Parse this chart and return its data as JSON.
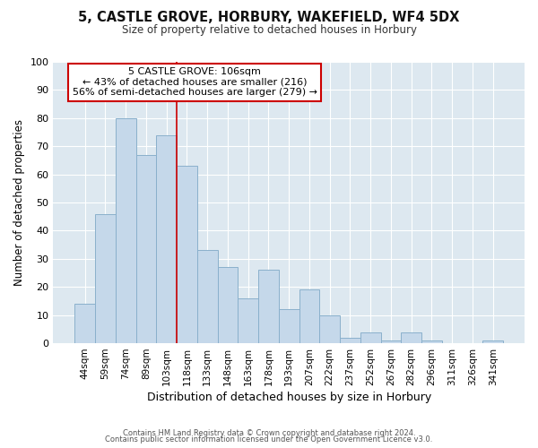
{
  "title": "5, CASTLE GROVE, HORBURY, WAKEFIELD, WF4 5DX",
  "subtitle": "Size of property relative to detached houses in Horbury",
  "xlabel": "Distribution of detached houses by size in Horbury",
  "ylabel": "Number of detached properties",
  "bar_labels": [
    "44sqm",
    "59sqm",
    "74sqm",
    "89sqm",
    "103sqm",
    "118sqm",
    "133sqm",
    "148sqm",
    "163sqm",
    "178sqm",
    "193sqm",
    "207sqm",
    "222sqm",
    "237sqm",
    "252sqm",
    "267sqm",
    "282sqm",
    "296sqm",
    "311sqm",
    "326sqm",
    "341sqm"
  ],
  "bar_values": [
    14,
    46,
    80,
    67,
    74,
    63,
    33,
    27,
    16,
    26,
    12,
    19,
    10,
    2,
    4,
    1,
    4,
    1,
    0,
    0,
    1
  ],
  "bar_color": "#c5d8ea",
  "bar_edgecolor": "#8ab0cc",
  "bar_linewidth": 0.7,
  "vline_x": 4.5,
  "vline_color": "#cc0000",
  "vline_linewidth": 1.2,
  "ylim": [
    0,
    100
  ],
  "yticks": [
    0,
    10,
    20,
    30,
    40,
    50,
    60,
    70,
    80,
    90,
    100
  ],
  "annotation_title": "5 CASTLE GROVE: 106sqm",
  "annotation_line1": "← 43% of detached houses are smaller (216)",
  "annotation_line2": "56% of semi-detached houses are larger (279) →",
  "annotation_box_facecolor": "#ffffff",
  "annotation_box_edgecolor": "#cc0000",
  "footer_line1": "Contains HM Land Registry data © Crown copyright and database right 2024.",
  "footer_line2": "Contains public sector information licensed under the Open Government Licence v3.0.",
  "fig_bg_color": "#ffffff",
  "plot_bg_color": "#dde8f0",
  "grid_color": "#ffffff",
  "figsize": [
    6.0,
    5.0
  ],
  "dpi": 100
}
